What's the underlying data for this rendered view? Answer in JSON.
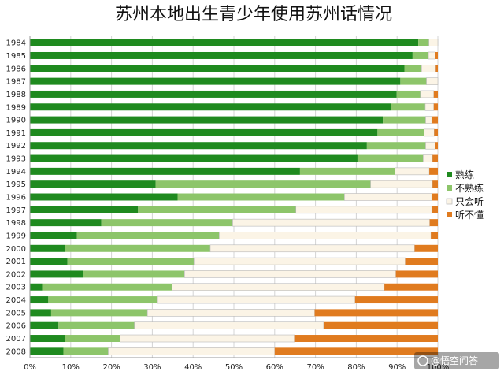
{
  "chart_data": {
    "type": "bar",
    "orientation": "horizontal",
    "stacked": true,
    "percent_stacked": true,
    "title": "苏州本地出生青少年使用苏州话情况",
    "xlabel": "",
    "ylabel": "",
    "xlim": [
      0,
      100
    ],
    "x_ticks": [
      "0%",
      "10%",
      "20%",
      "30%",
      "40%",
      "50%",
      "60%",
      "70%",
      "80%",
      "90%",
      "100%"
    ],
    "grid": "vertical",
    "legend_position": "right",
    "categories": [
      "1984",
      "1985",
      "1986",
      "1987",
      "1988",
      "1989",
      "1990",
      "1991",
      "1992",
      "1993",
      "1994",
      "1995",
      "1996",
      "1997",
      "1998",
      "1999",
      "2000",
      "2001",
      "2002",
      "2003",
      "2004",
      "2005",
      "2006",
      "2007",
      "2008"
    ],
    "series": [
      {
        "name": "熟练",
        "color": "#1f8a1f",
        "values": [
          95.2,
          93.8,
          91.8,
          90.8,
          89.9,
          88.5,
          86.5,
          85.2,
          82.6,
          80.3,
          66.2,
          30.8,
          36.2,
          26.5,
          17.5,
          11.5,
          8.5,
          9.2,
          13,
          3,
          4.5,
          5.2,
          7,
          8.6,
          8.2
        ]
      },
      {
        "name": "不熟练",
        "color": "#8dc56a",
        "values": [
          2.6,
          3.9,
          4.2,
          6.4,
          5.8,
          8.4,
          10.5,
          11.4,
          14.4,
          16.1,
          23.3,
          52.7,
          40.9,
          38.7,
          32.2,
          34.9,
          35.7,
          31,
          24.9,
          31.8,
          26.8,
          23.6,
          18.6,
          13.5,
          11
        ]
      },
      {
        "name": "只会听",
        "color": "#fbf4e6",
        "values": [
          2.2,
          1.7,
          3.5,
          2.8,
          3.3,
          2.1,
          1.5,
          2.5,
          2.3,
          2.3,
          8.4,
          15.2,
          21.4,
          33.3,
          48.3,
          51.9,
          50.1,
          51.8,
          51.8,
          52.1,
          48.4,
          41,
          46.4,
          42.7,
          40.8
        ]
      },
      {
        "name": "听不懂",
        "color": "#e07b1f",
        "values": [
          0,
          0.6,
          0.5,
          0,
          1,
          1,
          1.5,
          0.9,
          0.7,
          1.3,
          2.1,
          1.3,
          1.5,
          1.5,
          2,
          1.7,
          5.7,
          8,
          10.3,
          13.1,
          20.3,
          30.2,
          28,
          35.2,
          40
        ]
      }
    ],
    "legend": [
      "熟练",
      "不熟练",
      "只会听",
      "听不懂"
    ]
  },
  "watermark": {
    "text": "@悟空问答"
  },
  "colors": {
    "background": "#ffffff",
    "grid": "#d4d4d4",
    "axis": "#9a9a9a",
    "bar_outline": "#b8b8b8"
  }
}
